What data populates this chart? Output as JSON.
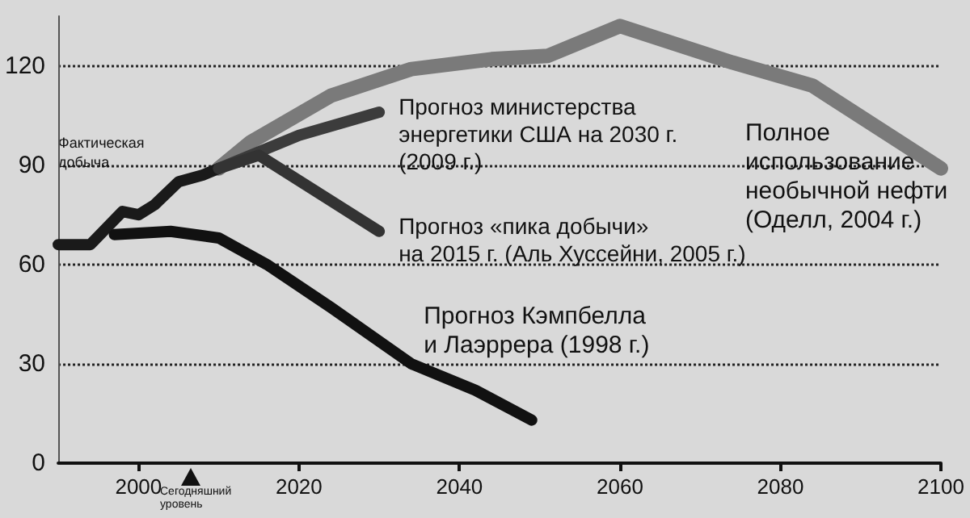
{
  "chart_data": {
    "type": "line",
    "xlim": [
      1990,
      2100
    ],
    "xticks": [
      2000,
      2020,
      2040,
      2060,
      2080,
      2100
    ],
    "ylim": [
      0,
      135
    ],
    "yticks": [
      0,
      30,
      60,
      90,
      120
    ],
    "grid": "y",
    "line_style": "solid",
    "marker": "none",
    "series": [
      {
        "name": "Фактическая\nдобыча",
        "color": "#1a1a1a",
        "x": [
          1990,
          1994,
          1998,
          2000,
          2002,
          2005,
          2008,
          2010
        ],
        "values": [
          66,
          66,
          76,
          75,
          78,
          85,
          87,
          89
        ]
      },
      {
        "name": "Полное\nиспользование\nнеобычной нефти\n(Оделл, 2004 г.)",
        "color": "#7a7a7a",
        "x": [
          2010,
          2014,
          2024,
          2034,
          2044,
          2051,
          2060,
          2074,
          2084,
          2100
        ],
        "values": [
          89,
          97,
          111,
          119,
          122,
          123,
          132,
          121,
          114,
          89
        ]
      },
      {
        "name": "Прогноз министерства\nэнергетики США на 2030 г.\n(2009 г.)",
        "color": "#3c3c3c",
        "x": [
          2010,
          2020,
          2030
        ],
        "values": [
          89,
          99,
          106
        ]
      },
      {
        "name": "Прогноз «пика добычи»\nна 2015 г. (Аль Хуссейни, 2005 г.)",
        "color": "#333333",
        "x": [
          2010,
          2015,
          2030
        ],
        "values": [
          89,
          93,
          70
        ]
      },
      {
        "name": "Прогноз Кэмпбелла\nи Лаэррера (1998 г.)",
        "color": "#111111",
        "x": [
          1997,
          2004,
          2010,
          2016,
          2024,
          2034,
          2042,
          2049
        ],
        "values": [
          69,
          70,
          68,
          60,
          47,
          30,
          22,
          13
        ]
      }
    ],
    "annotations": [
      "Сегодняшний\nуровень"
    ]
  }
}
